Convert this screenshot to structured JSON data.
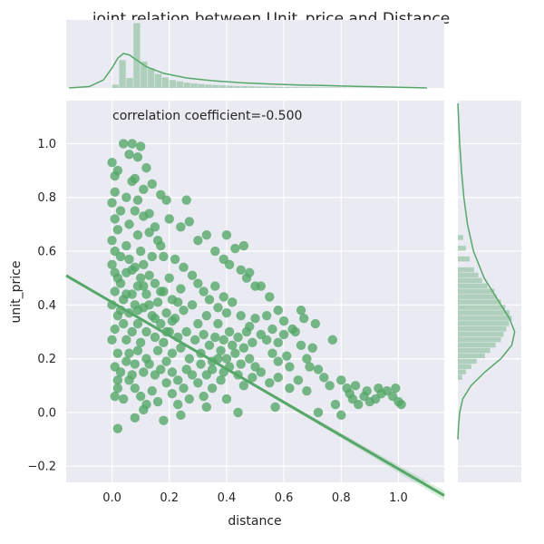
{
  "chart_data": {
    "type": "scatter",
    "title": "joint relation between Unit_price and Distance",
    "xlabel": "distance",
    "ylabel": "unit_price",
    "annotation": "correlation coefficient=-0.500",
    "xlim": [
      -0.16,
      1.16
    ],
    "ylim": [
      -0.26,
      1.16
    ],
    "xticks": [
      "0.0",
      "0.2",
      "0.4",
      "0.6",
      "0.8",
      "1.0"
    ],
    "yticks": [
      "−0.2",
      "0.0",
      "0.2",
      "0.4",
      "0.6",
      "0.8",
      "1.0"
    ],
    "xtick_values": [
      0.0,
      0.2,
      0.4,
      0.6,
      0.8,
      1.0
    ],
    "ytick_values": [
      -0.2,
      0.0,
      0.2,
      0.4,
      0.6,
      0.8,
      1.0
    ],
    "grid": true,
    "color": "#55a868",
    "background": "#eaeaf2",
    "regression": {
      "slope": -0.62,
      "intercept": 0.41,
      "x_range": [
        -0.16,
        1.16
      ]
    },
    "points": [
      [
        0.0,
        0.93
      ],
      [
        0.01,
        0.88
      ],
      [
        0.01,
        0.82
      ],
      [
        0.02,
        0.9
      ],
      [
        0.0,
        0.78
      ],
      [
        0.01,
        0.72
      ],
      [
        0.02,
        0.68
      ],
      [
        0.0,
        0.64
      ],
      [
        0.01,
        0.6
      ],
      [
        0.0,
        0.55
      ],
      [
        0.02,
        0.5
      ],
      [
        0.01,
        0.45
      ],
      [
        0.0,
        0.4
      ],
      [
        0.02,
        0.36
      ],
      [
        0.01,
        0.31
      ],
      [
        0.0,
        0.27
      ],
      [
        0.02,
        0.22
      ],
      [
        0.01,
        0.17
      ],
      [
        0.02,
        0.12
      ],
      [
        0.03,
        0.58
      ],
      [
        0.03,
        0.48
      ],
      [
        0.04,
        0.42
      ],
      [
        0.04,
        0.33
      ],
      [
        0.05,
        0.62
      ],
      [
        0.05,
        0.52
      ],
      [
        0.05,
        0.27
      ],
      [
        0.06,
        0.7
      ],
      [
        0.06,
        0.57
      ],
      [
        0.06,
        0.37
      ],
      [
        0.06,
        0.22
      ],
      [
        0.07,
        0.44
      ],
      [
        0.07,
        0.3
      ],
      [
        0.08,
        0.75
      ],
      [
        0.08,
        0.54
      ],
      [
        0.08,
        0.4
      ],
      [
        0.08,
        0.18
      ],
      [
        0.09,
        0.66
      ],
      [
        0.09,
        0.47
      ],
      [
        0.09,
        0.33
      ],
      [
        0.1,
        0.6
      ],
      [
        0.1,
        0.5
      ],
      [
        0.1,
        0.26
      ],
      [
        0.11,
        0.73
      ],
      [
        0.11,
        0.55
      ],
      [
        0.11,
        0.39
      ],
      [
        0.12,
        0.44
      ],
      [
        0.12,
        0.3
      ],
      [
        0.12,
        0.2
      ],
      [
        0.13,
        0.67
      ],
      [
        0.13,
        0.51
      ],
      [
        0.14,
        0.58
      ],
      [
        0.14,
        0.36
      ],
      [
        0.15,
        0.48
      ],
      [
        0.15,
        0.28
      ],
      [
        0.16,
        0.41
      ],
      [
        0.16,
        0.23
      ],
      [
        0.17,
        0.62
      ],
      [
        0.17,
        0.33
      ],
      [
        0.18,
        0.45
      ],
      [
        0.18,
        0.26
      ],
      [
        0.19,
        0.37
      ],
      [
        0.2,
        0.5
      ],
      [
        0.2,
        0.3
      ],
      [
        0.21,
        0.42
      ],
      [
        0.21,
        0.22
      ],
      [
        0.22,
        0.35
      ],
      [
        0.23,
        0.28
      ],
      [
        0.24,
        0.46
      ],
      [
        0.24,
        0.24
      ],
      [
        0.25,
        0.38
      ],
      [
        0.26,
        0.3
      ],
      [
        0.27,
        0.2
      ],
      [
        0.28,
        0.4
      ],
      [
        0.29,
        0.27
      ],
      [
        0.3,
        0.33
      ],
      [
        0.31,
        0.22
      ],
      [
        0.32,
        0.29
      ],
      [
        0.33,
        0.36
      ],
      [
        0.34,
        0.25
      ],
      [
        0.35,
        0.19
      ],
      [
        0.36,
        0.28
      ],
      [
        0.37,
        0.33
      ],
      [
        0.38,
        0.23
      ],
      [
        0.39,
        0.27
      ],
      [
        0.4,
        0.2
      ],
      [
        0.41,
        0.3
      ],
      [
        0.42,
        0.25
      ],
      [
        0.43,
        0.22
      ],
      [
        0.44,
        0.28
      ],
      [
        0.45,
        0.18
      ],
      [
        0.46,
        0.24
      ],
      [
        0.47,
        0.3
      ],
      [
        0.48,
        0.2
      ],
      [
        0.49,
        0.26
      ],
      [
        0.5,
        0.17
      ],
      [
        0.04,
        1.0
      ],
      [
        0.07,
        1.0
      ],
      [
        0.1,
        0.99
      ],
      [
        0.06,
        0.96
      ],
      [
        0.09,
        0.95
      ],
      [
        0.12,
        0.91
      ],
      [
        0.08,
        0.87
      ],
      [
        0.11,
        0.83
      ],
      [
        0.14,
        0.85
      ],
      [
        0.17,
        0.81
      ],
      [
        0.19,
        0.79
      ],
      [
        0.26,
        0.79
      ],
      [
        0.2,
        0.72
      ],
      [
        0.24,
        0.69
      ],
      [
        0.27,
        0.71
      ],
      [
        0.3,
        0.64
      ],
      [
        0.33,
        0.66
      ],
      [
        0.36,
        0.6
      ],
      [
        0.39,
        0.57
      ],
      [
        0.41,
        0.55
      ],
      [
        0.45,
        0.53
      ],
      [
        0.47,
        0.5
      ],
      [
        0.52,
        0.47
      ],
      [
        0.55,
        0.43
      ],
      [
        0.58,
        0.38
      ],
      [
        0.36,
        0.47
      ],
      [
        0.39,
        0.43
      ],
      [
        0.4,
        0.66
      ],
      [
        0.43,
        0.61
      ],
      [
        0.46,
        0.62
      ],
      [
        0.48,
        0.52
      ],
      [
        0.5,
        0.47
      ],
      [
        0.54,
        0.36
      ],
      [
        0.56,
        0.31
      ],
      [
        0.58,
        0.26
      ],
      [
        0.6,
        0.29
      ],
      [
        0.61,
        0.21
      ],
      [
        0.62,
        0.17
      ],
      [
        0.64,
        0.3
      ],
      [
        0.66,
        0.25
      ],
      [
        0.68,
        0.2
      ],
      [
        0.69,
        0.17
      ],
      [
        0.7,
        0.24
      ],
      [
        0.72,
        0.16
      ],
      [
        0.74,
        0.13
      ],
      [
        0.76,
        0.1
      ],
      [
        0.58,
        0.13
      ],
      [
        0.62,
        0.09
      ],
      [
        0.65,
        0.12
      ],
      [
        0.68,
        0.08
      ],
      [
        0.55,
        0.11
      ],
      [
        0.52,
        0.15
      ],
      [
        0.49,
        0.13
      ],
      [
        0.46,
        0.1
      ],
      [
        0.44,
        0.14
      ],
      [
        0.41,
        0.17
      ],
      [
        0.38,
        0.12
      ],
      [
        0.35,
        0.09
      ],
      [
        0.32,
        0.06
      ],
      [
        0.3,
        0.11
      ],
      [
        0.27,
        0.05
      ],
      [
        0.25,
        0.09
      ],
      [
        0.23,
        0.03
      ],
      [
        0.21,
        0.07
      ],
      [
        0.19,
        0.11
      ],
      [
        0.16,
        0.04
      ],
      [
        0.14,
        0.08
      ],
      [
        0.12,
        0.03
      ],
      [
        0.1,
        0.06
      ],
      [
        0.08,
        0.09
      ],
      [
        0.06,
        0.12
      ],
      [
        0.04,
        0.05
      ],
      [
        0.02,
        0.09
      ],
      [
        0.01,
        0.06
      ],
      [
        0.67,
        0.35
      ],
      [
        0.71,
        0.33
      ],
      [
        0.63,
        0.31
      ],
      [
        0.6,
        0.34
      ],
      [
        0.66,
        0.38
      ],
      [
        0.77,
        0.27
      ],
      [
        0.8,
        0.12
      ],
      [
        0.83,
        0.07
      ],
      [
        0.85,
        0.1
      ],
      [
        0.88,
        0.06
      ],
      [
        0.9,
        0.04
      ],
      [
        0.92,
        0.05
      ],
      [
        0.94,
        0.07
      ],
      [
        0.96,
        0.08
      ],
      [
        0.98,
        0.06
      ],
      [
        1.0,
        0.04
      ],
      [
        1.01,
        0.03
      ],
      [
        0.86,
        0.03
      ],
      [
        0.89,
        0.08
      ],
      [
        0.82,
        0.09
      ],
      [
        0.99,
        0.09
      ],
      [
        0.84,
        0.05
      ],
      [
        0.93,
        0.09
      ],
      [
        0.33,
        0.02
      ],
      [
        0.4,
        0.05
      ],
      [
        0.44,
        0.0
      ],
      [
        0.57,
        0.02
      ],
      [
        0.72,
        0.0
      ],
      [
        0.78,
        0.03
      ],
      [
        0.8,
        -0.01
      ],
      [
        0.02,
        -0.06
      ],
      [
        0.08,
        -0.02
      ],
      [
        0.11,
        0.01
      ],
      [
        0.18,
        -0.03
      ],
      [
        0.24,
        -0.01
      ],
      [
        0.03,
        0.75
      ],
      [
        0.05,
        0.8
      ],
      [
        0.07,
        0.86
      ],
      [
        0.09,
        0.79
      ],
      [
        0.13,
        0.74
      ],
      [
        0.15,
        0.69
      ],
      [
        0.16,
        0.64
      ],
      [
        0.18,
        0.58
      ],
      [
        0.22,
        0.57
      ],
      [
        0.25,
        0.54
      ],
      [
        0.28,
        0.51
      ],
      [
        0.3,
        0.48
      ],
      [
        0.32,
        0.45
      ],
      [
        0.34,
        0.42
      ],
      [
        0.37,
        0.39
      ],
      [
        0.4,
        0.37
      ],
      [
        0.42,
        0.41
      ],
      [
        0.45,
        0.36
      ],
      [
        0.48,
        0.32
      ],
      [
        0.5,
        0.35
      ],
      [
        0.52,
        0.29
      ],
      [
        0.54,
        0.27
      ],
      [
        0.56,
        0.22
      ],
      [
        0.58,
        0.19
      ],
      [
        0.03,
        0.15
      ],
      [
        0.05,
        0.19
      ],
      [
        0.07,
        0.14
      ],
      [
        0.09,
        0.23
      ],
      [
        0.11,
        0.15
      ],
      [
        0.13,
        0.18
      ],
      [
        0.15,
        0.14
      ],
      [
        0.17,
        0.16
      ],
      [
        0.19,
        0.19
      ],
      [
        0.21,
        0.15
      ],
      [
        0.23,
        0.12
      ],
      [
        0.26,
        0.16
      ],
      [
        0.28,
        0.14
      ],
      [
        0.31,
        0.18
      ],
      [
        0.33,
        0.14
      ],
      [
        0.35,
        0.16
      ],
      [
        0.37,
        0.2
      ],
      [
        0.39,
        0.15
      ],
      [
        0.01,
        0.52
      ],
      [
        0.03,
        0.38
      ],
      [
        0.05,
        0.44
      ],
      [
        0.07,
        0.53
      ],
      [
        0.09,
        0.38
      ],
      [
        0.11,
        0.47
      ],
      [
        0.13,
        0.4
      ],
      [
        0.15,
        0.35
      ],
      [
        0.17,
        0.45
      ],
      [
        0.19,
        0.3
      ],
      [
        0.21,
        0.34
      ],
      [
        0.23,
        0.41
      ]
    ],
    "top_histogram": [
      0.05,
      0.42,
      0.15,
      0.98,
      0.4,
      0.3,
      0.21,
      0.16,
      0.12,
      0.1,
      0.08,
      0.07,
      0.06,
      0.05,
      0.045,
      0.04,
      0.035,
      0.03,
      0.028,
      0.025,
      0.022,
      0.02,
      0.018,
      0.015,
      0.013,
      0.012,
      0.01,
      0.01,
      0.008,
      0.007,
      0.006,
      0.005,
      0.004,
      0.003,
      0.003,
      0.002,
      0.002,
      0.002,
      0.001,
      0.001,
      0.001,
      0.001
    ],
    "top_kde_x": [
      -0.15,
      -0.08,
      -0.03,
      0.0,
      0.02,
      0.04,
      0.06,
      0.08,
      0.12,
      0.18,
      0.26,
      0.35,
      0.45,
      0.55,
      0.65,
      0.75,
      0.85,
      0.95,
      1.05,
      1.1
    ],
    "top_kde_y": [
      0.0,
      0.02,
      0.12,
      0.3,
      0.45,
      0.52,
      0.5,
      0.44,
      0.32,
      0.22,
      0.15,
      0.11,
      0.08,
      0.06,
      0.045,
      0.035,
      0.025,
      0.015,
      0.005,
      0.0
    ],
    "right_histogram": [
      {
        "y": 0.64,
        "w": 0.1
      },
      {
        "y": 0.6,
        "w": 0.15
      },
      {
        "y": 0.56,
        "w": 0.22
      },
      {
        "y": 0.52,
        "w": 0.3
      },
      {
        "y": 0.5,
        "w": 0.38
      },
      {
        "y": 0.48,
        "w": 0.45
      },
      {
        "y": 0.46,
        "w": 0.55
      },
      {
        "y": 0.44,
        "w": 0.68
      },
      {
        "y": 0.42,
        "w": 0.72
      },
      {
        "y": 0.4,
        "w": 0.8
      },
      {
        "y": 0.38,
        "w": 0.88
      },
      {
        "y": 0.36,
        "w": 0.96
      },
      {
        "y": 0.34,
        "w": 1.0
      },
      {
        "y": 0.32,
        "w": 0.95
      },
      {
        "y": 0.3,
        "w": 0.9
      },
      {
        "y": 0.28,
        "w": 0.85
      },
      {
        "y": 0.26,
        "w": 0.8
      },
      {
        "y": 0.24,
        "w": 0.7
      },
      {
        "y": 0.22,
        "w": 0.6
      },
      {
        "y": 0.2,
        "w": 0.5
      },
      {
        "y": 0.18,
        "w": 0.35
      },
      {
        "y": 0.16,
        "w": 0.25
      },
      {
        "y": 0.14,
        "w": 0.15
      },
      {
        "y": 0.12,
        "w": 0.08
      }
    ],
    "right_kde_y": [
      1.15,
      1.0,
      0.9,
      0.8,
      0.7,
      0.6,
      0.5,
      0.45,
      0.4,
      0.35,
      0.3,
      0.25,
      0.2,
      0.15,
      0.1,
      0.05,
      0.0,
      -0.05,
      -0.1
    ],
    "right_kde_w": [
      0.0,
      0.03,
      0.06,
      0.1,
      0.16,
      0.26,
      0.44,
      0.58,
      0.72,
      0.86,
      0.95,
      0.9,
      0.72,
      0.45,
      0.22,
      0.08,
      0.03,
      0.01,
      0.0
    ]
  }
}
